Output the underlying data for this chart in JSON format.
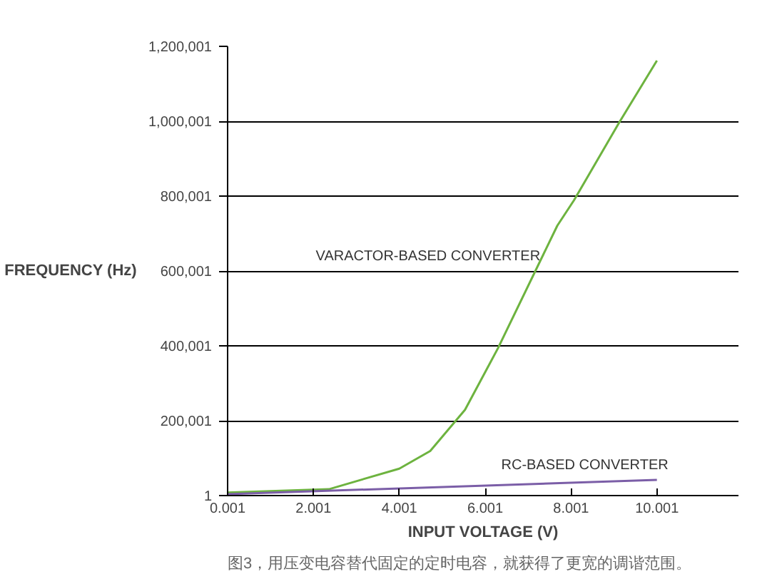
{
  "chart_data": {
    "type": "line",
    "xlabel": "INPUT VOLTAGE (V)",
    "ylabel": "FREQUENCY (Hz)",
    "series": [
      {
        "name": "VARACTOR-BASED CONVERTER",
        "color": "#6db33f",
        "x": [
          0.001,
          2.36,
          4.0,
          4.72,
          5.53,
          6.3,
          7.68,
          8.07,
          9.12,
          10.0
        ],
        "values": [
          8000,
          17000,
          72000,
          119000,
          229000,
          394000,
          721000,
          789000,
          996000,
          1162000
        ]
      },
      {
        "name": "RC-BASED CONVERTER",
        "color": "#7b5ea7",
        "x": [
          0.001,
          10.0
        ],
        "values": [
          4000,
          42000
        ]
      }
    ],
    "xlim": [
      0.001,
      11.9
    ],
    "ylim": [
      1,
      1200001
    ],
    "xticks": [
      0.001,
      2.001,
      4.001,
      6.001,
      8.001,
      10.001
    ],
    "yticks": [
      {
        "value": 1,
        "label": "1"
      },
      {
        "value": 200001,
        "label": "200,001"
      },
      {
        "value": 400001,
        "label": "400,001"
      },
      {
        "value": 600001,
        "label": "600,001"
      },
      {
        "value": 800001,
        "label": "800,001"
      },
      {
        "value": 1000001,
        "label": "1,000,001"
      },
      {
        "value": 1200001,
        "label": "1,200,001"
      }
    ],
    "grid": "y",
    "marker": "none",
    "line_style": "solid",
    "annotations": [
      "图3，用压变电容替代固定的定时电容，就获得了更宽的调谐范围。"
    ]
  }
}
